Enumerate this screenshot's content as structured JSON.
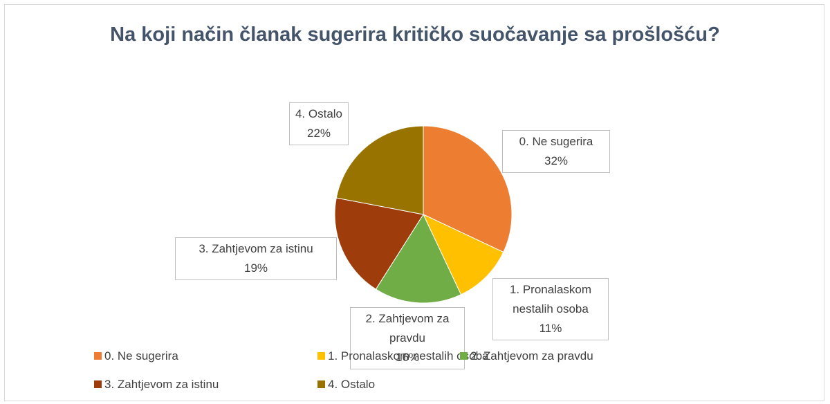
{
  "chart_data": {
    "type": "pie",
    "title": "Na koji način članak sugerira kritičko suočavanje sa prošlošću?",
    "categories": [
      "0. Ne sugerira",
      "1. Pronalaskom nestalih osoba",
      "2. Zahtjevom za pravdu",
      "3. Zahtjevom za istinu",
      "4. Ostalo"
    ],
    "values": [
      32,
      11,
      16,
      19,
      22
    ],
    "value_labels": [
      "32%",
      "11%",
      "16%",
      "19%",
      "22%"
    ],
    "colors": [
      "#ed7d31",
      "#ffc000",
      "#70ad47",
      "#9e3d0b",
      "#997300"
    ],
    "legend": "bottom"
  }
}
